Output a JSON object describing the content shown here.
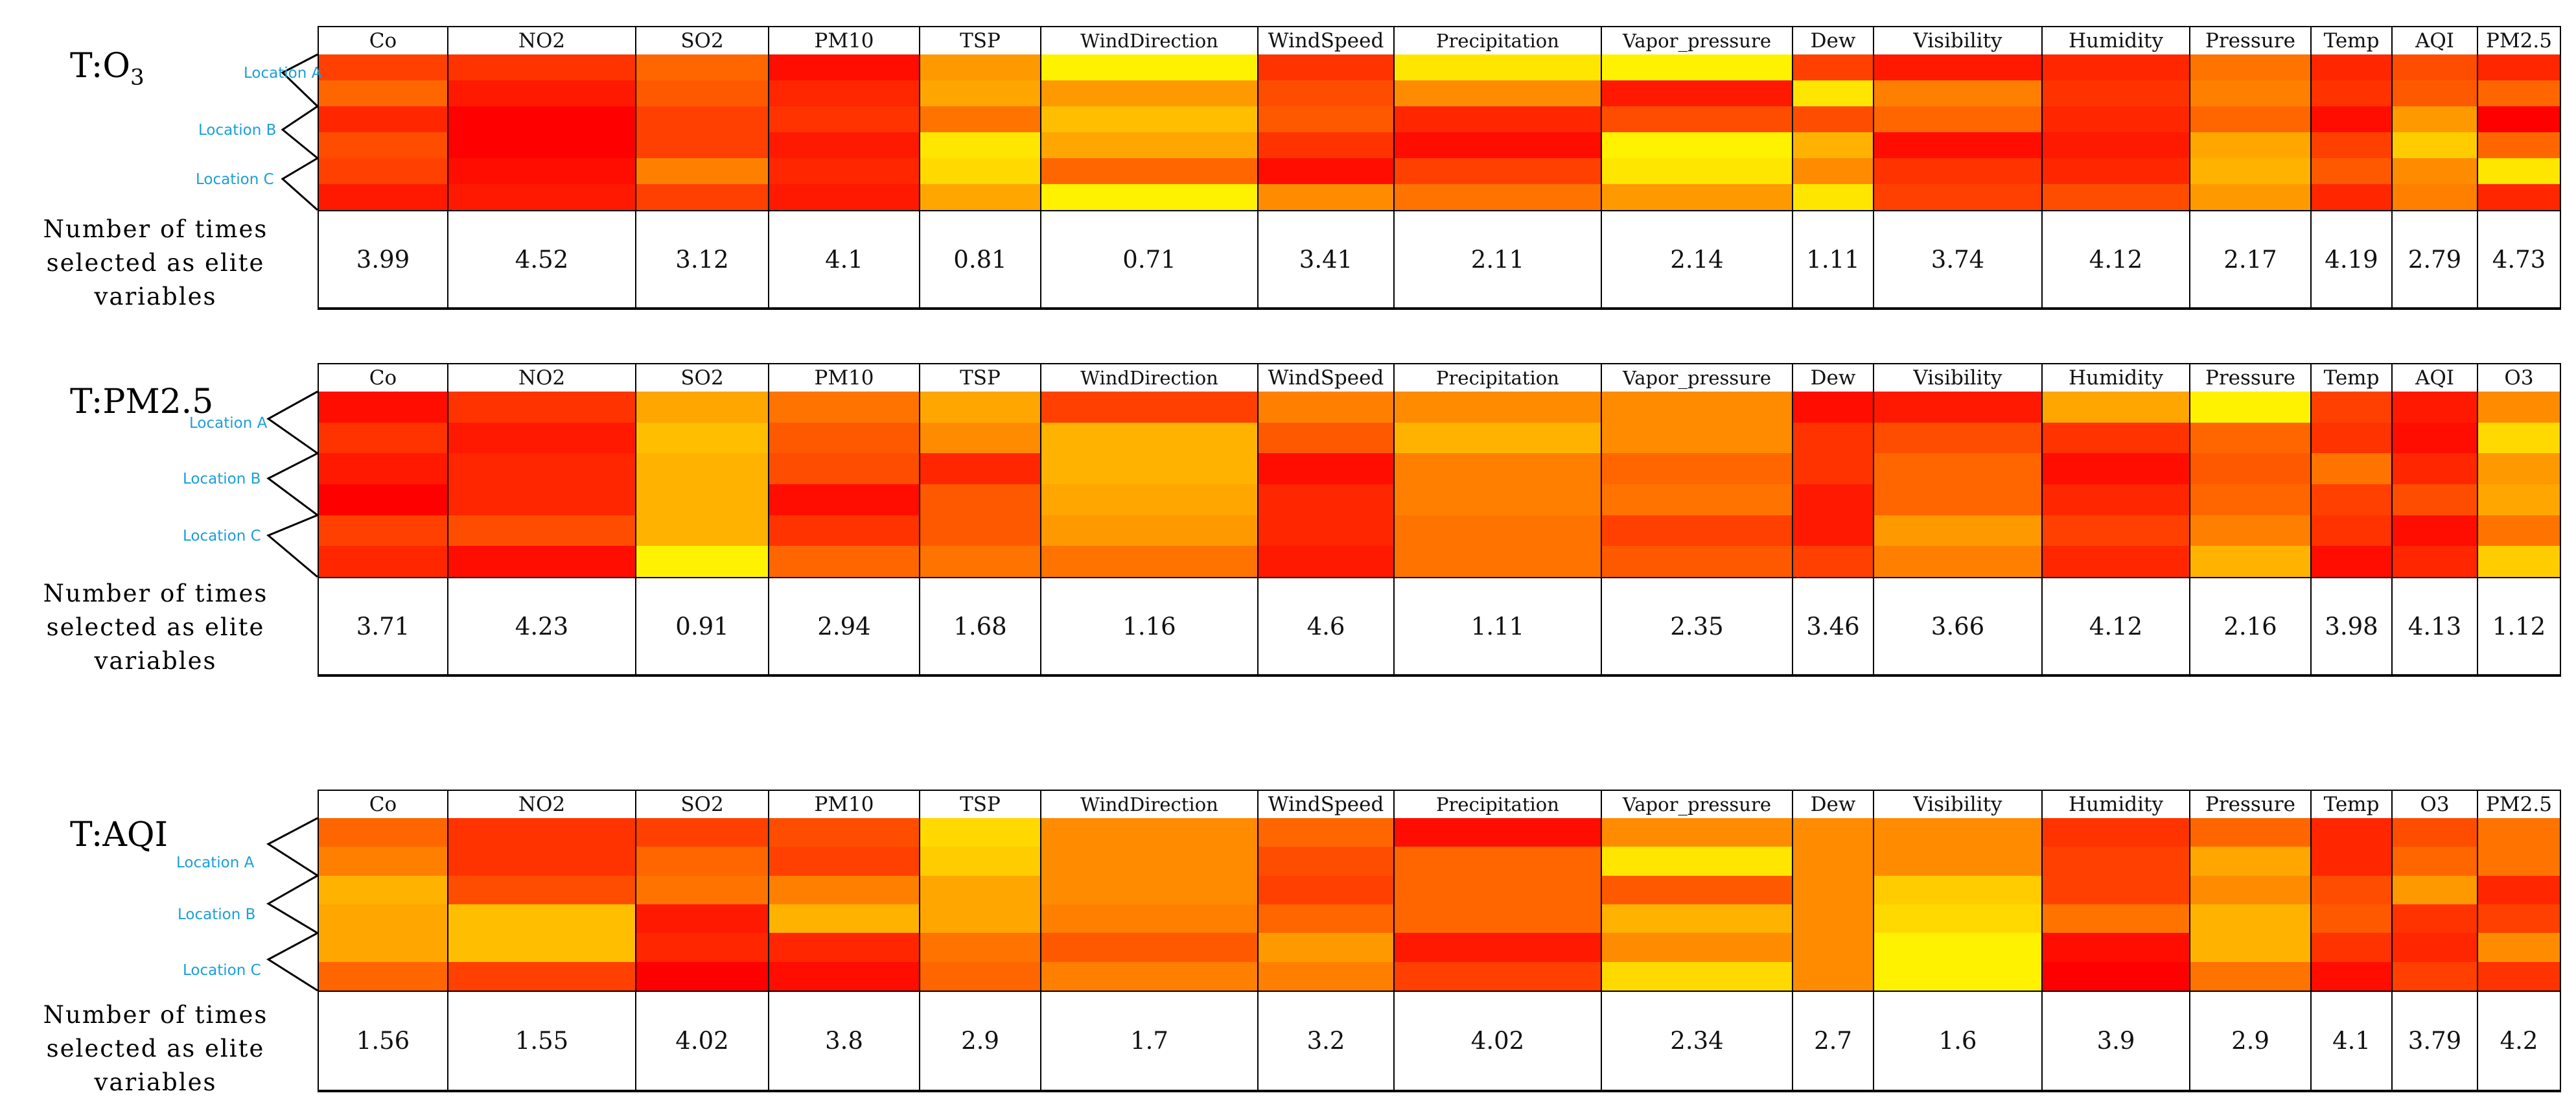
{
  "colors": {
    "scale_low": "#ffff00",
    "scale_mid": "#ffa000",
    "scale_high": "#ff0000",
    "location_label": "#1a9fd8",
    "grid": "#000000"
  },
  "chart_data": [
    {
      "type": "heatmap",
      "title_prefix": "T:O",
      "title_sub": "3",
      "target": "O3",
      "row_label": "Number of times selected as elite variables",
      "locations": [
        "Location A",
        "Location B",
        "Location C"
      ],
      "columns": [
        "Co",
        "NO2",
        "SO2",
        "PM10",
        "TSP",
        "WindDirection",
        "WindSpeed",
        "Precipitation",
        "Vapor_pressure",
        "Dew",
        "Visibility",
        "Humidity",
        "Pressure",
        "Temp",
        "AQI",
        "PM2.5"
      ],
      "values": [
        "3.99",
        "4.52",
        "3.12",
        "4.1",
        "0.81",
        "0.71",
        "3.41",
        "2.11",
        "2.14",
        "1.11",
        "3.74",
        "4.12",
        "2.17",
        "4.19",
        "2.79",
        "4.73"
      ],
      "intensity": [
        [
          0.75,
          0.8,
          0.6,
          0.95,
          0.4,
          0.05,
          0.8,
          0.1,
          0.05,
          0.75,
          0.9,
          0.85,
          0.55,
          0.85,
          0.7,
          0.85
        ],
        [
          0.6,
          0.9,
          0.65,
          0.85,
          0.35,
          0.4,
          0.7,
          0.45,
          0.9,
          0.1,
          0.5,
          0.8,
          0.5,
          0.8,
          0.65,
          0.6
        ],
        [
          0.85,
          1.0,
          0.75,
          0.8,
          0.55,
          0.25,
          0.65,
          0.85,
          0.7,
          0.7,
          0.6,
          0.85,
          0.6,
          0.95,
          0.4,
          1.0
        ],
        [
          0.7,
          1.0,
          0.75,
          0.9,
          0.1,
          0.35,
          0.8,
          0.95,
          0.05,
          0.3,
          0.95,
          0.9,
          0.35,
          0.75,
          0.2,
          0.6
        ],
        [
          0.75,
          0.95,
          0.5,
          0.85,
          0.15,
          0.6,
          0.95,
          0.75,
          0.1,
          0.45,
          0.8,
          0.85,
          0.3,
          0.65,
          0.45,
          0.1
        ],
        [
          0.9,
          0.9,
          0.75,
          0.9,
          0.35,
          0.05,
          0.45,
          0.55,
          0.4,
          0.1,
          0.75,
          0.7,
          0.4,
          0.85,
          0.5,
          0.85
        ]
      ]
    },
    {
      "type": "heatmap",
      "title_prefix": "T:PM2.5",
      "title_sub": "",
      "target": "PM2.5",
      "row_label": "Number of times selected as elite variables",
      "locations": [
        "Location A",
        "Location B",
        "Location C"
      ],
      "columns": [
        "Co",
        "NO2",
        "SO2",
        "PM10",
        "TSP",
        "WindDirection",
        "WindSpeed",
        "Precipitation",
        "Vapor_pressure",
        "Dew",
        "Visibility",
        "Humidity",
        "Pressure",
        "Temp",
        "AQI",
        "O3"
      ],
      "values": [
        "3.71",
        "4.23",
        "0.91",
        "2.94",
        "1.68",
        "1.16",
        "4.6",
        "1.11",
        "2.35",
        "3.46",
        "3.66",
        "4.12",
        "2.16",
        "3.98",
        "4.13",
        "1.12"
      ],
      "intensity": [
        [
          0.95,
          0.8,
          0.35,
          0.55,
          0.35,
          0.75,
          0.5,
          0.45,
          0.45,
          0.95,
          0.9,
          0.35,
          0.05,
          0.75,
          0.9,
          0.45
        ],
        [
          0.8,
          0.9,
          0.25,
          0.65,
          0.45,
          0.3,
          0.65,
          0.3,
          0.45,
          0.8,
          0.7,
          0.8,
          0.6,
          0.8,
          0.95,
          0.15
        ],
        [
          0.9,
          0.85,
          0.3,
          0.7,
          0.85,
          0.3,
          0.95,
          0.5,
          0.6,
          0.8,
          0.6,
          0.95,
          0.65,
          0.55,
          0.85,
          0.4
        ],
        [
          1.0,
          0.85,
          0.3,
          0.95,
          0.65,
          0.35,
          0.85,
          0.5,
          0.55,
          0.9,
          0.6,
          0.85,
          0.6,
          0.75,
          0.7,
          0.35
        ],
        [
          0.75,
          0.7,
          0.3,
          0.8,
          0.65,
          0.4,
          0.85,
          0.55,
          0.75,
          0.9,
          0.4,
          0.75,
          0.5,
          0.8,
          0.95,
          0.55
        ],
        [
          0.85,
          0.95,
          0.05,
          0.6,
          0.55,
          0.55,
          0.9,
          0.55,
          0.65,
          0.75,
          0.5,
          0.85,
          0.3,
          0.95,
          0.85,
          0.2
        ]
      ]
    },
    {
      "type": "heatmap",
      "title_prefix": "T:AQI",
      "title_sub": "",
      "target": "AQI",
      "row_label": "Number of times selected as elite variables",
      "locations": [
        "Location A",
        "Location B",
        "Location C"
      ],
      "columns": [
        "Co",
        "NO2",
        "SO2",
        "PM10",
        "TSP",
        "WindDirection",
        "WindSpeed",
        "Precipitation",
        "Vapor_pressure",
        "Dew",
        "Visibility",
        "Humidity",
        "Pressure",
        "Temp",
        "O3",
        "PM2.5"
      ],
      "values": [
        "1.56",
        "1.55",
        "4.02",
        "3.8",
        "2.9",
        "1.7",
        "3.2",
        "4.02",
        "2.34",
        "2.7",
        "1.6",
        "3.9",
        "2.9",
        "4.1",
        "3.79",
        "4.2"
      ],
      "intensity": [
        [
          0.6,
          0.8,
          0.75,
          0.7,
          0.15,
          0.45,
          0.6,
          0.95,
          0.45,
          0.45,
          0.45,
          0.8,
          0.6,
          0.85,
          0.7,
          0.55
        ],
        [
          0.5,
          0.8,
          0.6,
          0.75,
          0.2,
          0.45,
          0.7,
          0.6,
          0.1,
          0.45,
          0.45,
          0.75,
          0.35,
          0.85,
          0.6,
          0.55
        ],
        [
          0.3,
          0.7,
          0.55,
          0.5,
          0.35,
          0.45,
          0.75,
          0.6,
          0.65,
          0.45,
          0.2,
          0.75,
          0.45,
          0.7,
          0.4,
          0.85
        ],
        [
          0.35,
          0.25,
          0.9,
          0.3,
          0.35,
          0.5,
          0.6,
          0.6,
          0.3,
          0.45,
          0.15,
          0.55,
          0.3,
          0.65,
          0.8,
          0.75
        ],
        [
          0.35,
          0.25,
          0.85,
          0.85,
          0.55,
          0.65,
          0.4,
          0.9,
          0.45,
          0.45,
          0.05,
          0.95,
          0.3,
          0.8,
          0.85,
          0.45
        ],
        [
          0.6,
          0.75,
          1.0,
          0.95,
          0.6,
          0.5,
          0.5,
          0.75,
          0.15,
          0.45,
          0.05,
          1.0,
          0.55,
          0.95,
          0.75,
          0.8
        ]
      ]
    }
  ]
}
